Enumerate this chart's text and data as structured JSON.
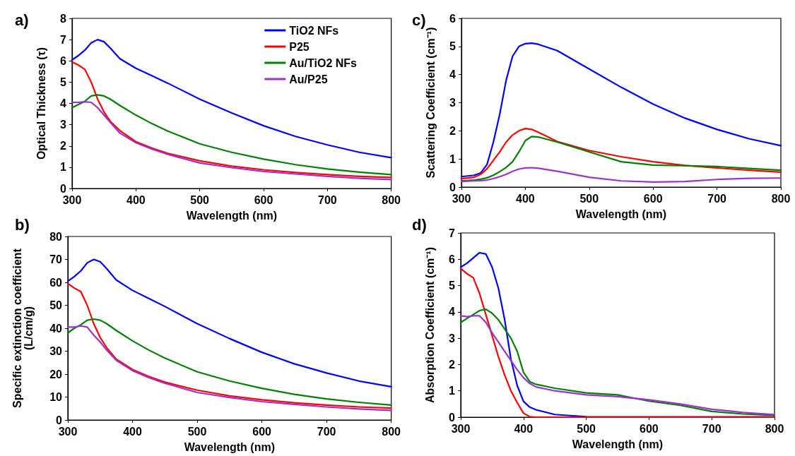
{
  "chart_data": [
    {
      "type": "line",
      "title": "a)",
      "xlabel": "Wavelength (nm)",
      "ylabel": "Optical Thickness (τ)",
      "xlim": [
        300,
        800
      ],
      "xticks": [
        300,
        400,
        500,
        600,
        700,
        800
      ],
      "ylim": [
        0,
        8
      ],
      "yticks": [
        0,
        1,
        2,
        3,
        4,
        5,
        6,
        7,
        8
      ],
      "legend": "top right",
      "marker": "none",
      "x": [
        300,
        310,
        320,
        330,
        340,
        350,
        360,
        375,
        400,
        425,
        450,
        500,
        550,
        600,
        650,
        700,
        750,
        800
      ],
      "series": [
        {
          "name": "TiO2 NFs",
          "color": "#0000ff",
          "values": [
            6.05,
            6.25,
            6.5,
            6.85,
            7.0,
            6.9,
            6.6,
            6.1,
            5.65,
            5.3,
            4.95,
            4.2,
            3.55,
            2.95,
            2.45,
            2.05,
            1.7,
            1.45
          ]
        },
        {
          "name": "P25",
          "color": "#ff0000",
          "values": [
            5.95,
            5.8,
            5.6,
            5.0,
            4.2,
            3.6,
            3.15,
            2.72,
            2.2,
            1.9,
            1.65,
            1.3,
            1.05,
            0.88,
            0.75,
            0.65,
            0.57,
            0.52
          ]
        },
        {
          "name": "Au/TiO2 NFs",
          "color": "#008000",
          "values": [
            3.8,
            3.95,
            4.1,
            4.35,
            4.4,
            4.35,
            4.2,
            3.9,
            3.45,
            3.05,
            2.7,
            2.1,
            1.7,
            1.38,
            1.12,
            0.92,
            0.77,
            0.65
          ]
        },
        {
          "name": "Au/P25",
          "color": "#9933cc",
          "values": [
            4.05,
            4.05,
            4.08,
            4.05,
            3.8,
            3.45,
            3.1,
            2.6,
            2.15,
            1.85,
            1.6,
            1.2,
            0.98,
            0.8,
            0.68,
            0.57,
            0.48,
            0.42
          ]
        }
      ]
    },
    {
      "type": "line",
      "title": "b)",
      "xlabel": "Wavelength (nm)",
      "ylabel": "Specific extinction coefficient\n(L/cm/g)",
      "xlim": [
        300,
        800
      ],
      "xticks": [
        300,
        400,
        500,
        600,
        700,
        800
      ],
      "ylim": [
        0,
        80
      ],
      "yticks": [
        0,
        10,
        20,
        30,
        40,
        50,
        60,
        70,
        80
      ],
      "marker": "none",
      "x": [
        300,
        310,
        320,
        330,
        340,
        350,
        360,
        375,
        400,
        425,
        450,
        500,
        550,
        600,
        650,
        700,
        750,
        800
      ],
      "series": [
        {
          "color": "#0000ff",
          "values": [
            60.5,
            62.5,
            65,
            68.5,
            70,
            69,
            66,
            61,
            56.5,
            53,
            49.5,
            42,
            35.5,
            29.5,
            24.5,
            20.5,
            17,
            14.5
          ]
        },
        {
          "color": "#ff0000",
          "values": [
            59.5,
            57.5,
            56,
            50,
            42,
            36,
            31.5,
            26.5,
            22,
            19,
            16.5,
            13,
            10.5,
            8.8,
            7.5,
            6.5,
            5.7,
            5.2
          ]
        },
        {
          "color": "#008000",
          "values": [
            38,
            40,
            41.5,
            43.5,
            44,
            43.5,
            42,
            39,
            34.5,
            30.5,
            27,
            21,
            17,
            13.8,
            11.2,
            9.2,
            7.7,
            6.5
          ]
        },
        {
          "color": "#9933cc",
          "values": [
            40.5,
            40.5,
            41,
            40.5,
            37,
            34,
            30.5,
            26,
            21.5,
            18.5,
            16,
            12,
            9.8,
            8,
            6.8,
            5.7,
            4.8,
            4.2
          ]
        }
      ]
    },
    {
      "type": "line",
      "title": "c)",
      "xlabel": "Wavelength (nm)",
      "ylabel": "Scattering Coefficient (cm⁻¹)",
      "xlim": [
        300,
        800
      ],
      "xticks": [
        300,
        400,
        500,
        600,
        700,
        800
      ],
      "ylim": [
        0,
        6
      ],
      "yticks": [
        0,
        1,
        2,
        3,
        4,
        5,
        6
      ],
      "marker": "none",
      "x": [
        300,
        320,
        330,
        340,
        350,
        360,
        370,
        380,
        390,
        400,
        410,
        420,
        450,
        500,
        550,
        600,
        650,
        700,
        750,
        800
      ],
      "series": [
        {
          "color": "#0000ff",
          "values": [
            0.37,
            0.42,
            0.5,
            0.8,
            1.6,
            2.6,
            3.8,
            4.65,
            5.0,
            5.1,
            5.12,
            5.08,
            4.85,
            4.2,
            3.55,
            2.95,
            2.45,
            2.05,
            1.72,
            1.47
          ]
        },
        {
          "color": "#ff0000",
          "values": [
            0.3,
            0.35,
            0.45,
            0.65,
            0.95,
            1.25,
            1.6,
            1.85,
            2.0,
            2.08,
            2.05,
            1.95,
            1.62,
            1.3,
            1.08,
            0.9,
            0.77,
            0.68,
            0.6,
            0.53
          ]
        },
        {
          "color": "#008000",
          "values": [
            0.22,
            0.25,
            0.28,
            0.33,
            0.42,
            0.55,
            0.7,
            0.9,
            1.25,
            1.65,
            1.8,
            1.78,
            1.6,
            1.25,
            0.9,
            0.78,
            0.76,
            0.73,
            0.66,
            0.6
          ]
        },
        {
          "color": "#9933cc",
          "values": [
            0.2,
            0.22,
            0.23,
            0.25,
            0.3,
            0.37,
            0.45,
            0.56,
            0.64,
            0.68,
            0.69,
            0.67,
            0.56,
            0.35,
            0.22,
            0.18,
            0.2,
            0.27,
            0.31,
            0.32
          ]
        }
      ]
    },
    {
      "type": "line",
      "title": "d)",
      "xlabel": "Wavelength (nm)",
      "ylabel": "Absorption Coefficient (cm⁻¹)",
      "xlim": [
        300,
        800
      ],
      "xticks": [
        300,
        400,
        500,
        600,
        700,
        800
      ],
      "ylim": [
        0,
        7
      ],
      "yticks": [
        0,
        1,
        2,
        3,
        4,
        5,
        6,
        7
      ],
      "marker": "none",
      "x": [
        300,
        310,
        320,
        330,
        340,
        350,
        360,
        370,
        380,
        390,
        400,
        410,
        420,
        450,
        500,
        550,
        600,
        650,
        700,
        750,
        800
      ],
      "series": [
        {
          "color": "#0000ff",
          "values": [
            5.7,
            5.85,
            6.05,
            6.25,
            6.2,
            5.7,
            4.9,
            3.7,
            2.2,
            1.2,
            0.6,
            0.38,
            0.28,
            0.1,
            0.02,
            0.01,
            0.01,
            0.01,
            0.01,
            0.01,
            0.01
          ]
        },
        {
          "color": "#ff0000",
          "values": [
            5.65,
            5.45,
            5.3,
            4.7,
            3.9,
            3.1,
            2.3,
            1.6,
            1.0,
            0.55,
            0.15,
            0.02,
            0,
            0,
            0,
            0,
            0,
            0,
            0,
            0,
            0
          ]
        },
        {
          "color": "#008000",
          "values": [
            3.6,
            3.75,
            3.9,
            4.05,
            4.1,
            3.95,
            3.7,
            3.35,
            3.0,
            2.5,
            1.7,
            1.35,
            1.25,
            1.1,
            0.92,
            0.85,
            0.61,
            0.45,
            0.22,
            0.12,
            0.07
          ]
        },
        {
          "color": "#9933cc",
          "values": [
            3.85,
            3.82,
            3.85,
            3.85,
            3.6,
            3.2,
            2.85,
            2.5,
            2.15,
            1.8,
            1.5,
            1.28,
            1.15,
            1.0,
            0.85,
            0.78,
            0.66,
            0.5,
            0.3,
            0.18,
            0.1
          ]
        }
      ]
    }
  ]
}
